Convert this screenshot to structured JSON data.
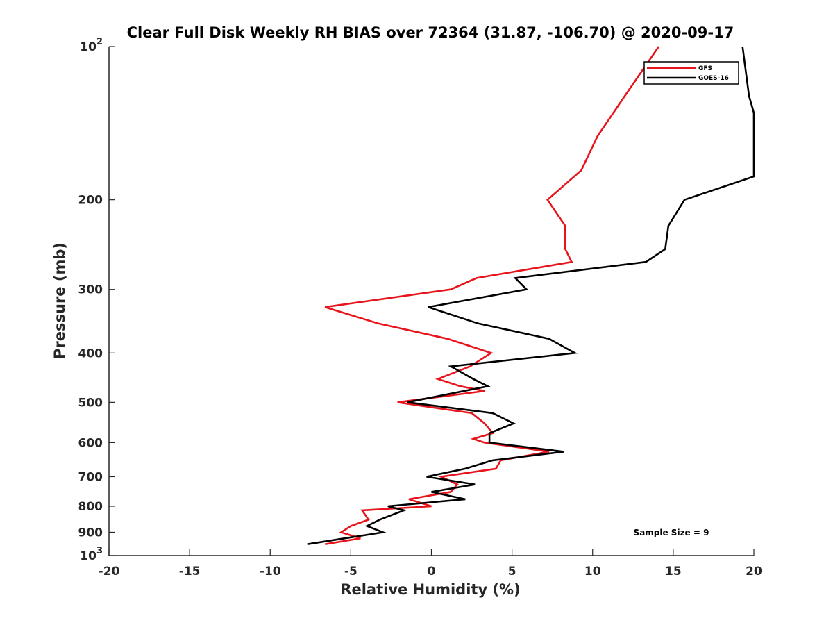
{
  "chart_data": {
    "type": "line",
    "title": "Clear Full Disk Weekly RH BIAS over 72364 (31.87, -106.70) @ 2020-09-17",
    "xlabel": "Relative Humidity (%)",
    "ylabel": "Pressure (mb)",
    "xlim": [
      -20,
      20
    ],
    "ylim": [
      1000,
      100
    ],
    "y_scale": "log",
    "y_reversed": true,
    "grid": false,
    "legend_placement": "top-right",
    "x_ticks": [
      {
        "value": -20,
        "label": "-20"
      },
      {
        "value": -15,
        "label": "-15"
      },
      {
        "value": -10,
        "label": "-10"
      },
      {
        "value": -5,
        "label": "-5"
      },
      {
        "value": 0,
        "label": "0"
      },
      {
        "value": 5,
        "label": "5"
      },
      {
        "value": 10,
        "label": "10"
      },
      {
        "value": 15,
        "label": "15"
      },
      {
        "value": 20,
        "label": "20"
      }
    ],
    "y_ticks": [
      {
        "value": 100,
        "base": "10",
        "exp": "2"
      },
      {
        "value": 200,
        "base": "200",
        "exp": ""
      },
      {
        "value": 300,
        "base": "300",
        "exp": ""
      },
      {
        "value": 400,
        "base": "400",
        "exp": ""
      },
      {
        "value": 500,
        "base": "500",
        "exp": ""
      },
      {
        "value": 600,
        "base": "600",
        "exp": ""
      },
      {
        "value": 700,
        "base": "700",
        "exp": ""
      },
      {
        "value": 800,
        "base": "800",
        "exp": ""
      },
      {
        "value": 900,
        "base": "900",
        "exp": ""
      },
      {
        "value": 1000,
        "base": "10",
        "exp": "3"
      }
    ],
    "series": [
      {
        "name": "GFS",
        "color": "#e8141c",
        "points": [
          {
            "x": 14.1,
            "p": 100
          },
          {
            "x": 12.0,
            "p": 125
          },
          {
            "x": 10.3,
            "p": 150
          },
          {
            "x": 9.3,
            "p": 175
          },
          {
            "x": 7.2,
            "p": 200
          },
          {
            "x": 8.3,
            "p": 225
          },
          {
            "x": 8.3,
            "p": 250
          },
          {
            "x": 8.7,
            "p": 265
          },
          {
            "x": 2.8,
            "p": 285
          },
          {
            "x": 1.2,
            "p": 300
          },
          {
            "x": -6.6,
            "p": 325
          },
          {
            "x": -3.3,
            "p": 350
          },
          {
            "x": 1.0,
            "p": 375
          },
          {
            "x": 3.7,
            "p": 400
          },
          {
            "x": 2.4,
            "p": 425
          },
          {
            "x": 0.4,
            "p": 450
          },
          {
            "x": 1.8,
            "p": 465
          },
          {
            "x": 3.3,
            "p": 475
          },
          {
            "x": -2.1,
            "p": 500
          },
          {
            "x": 2.5,
            "p": 525
          },
          {
            "x": 3.3,
            "p": 550
          },
          {
            "x": 3.8,
            "p": 575
          },
          {
            "x": 2.6,
            "p": 590
          },
          {
            "x": 3.3,
            "p": 600
          },
          {
            "x": 7.3,
            "p": 625
          },
          {
            "x": 4.3,
            "p": 650
          },
          {
            "x": 4.0,
            "p": 675
          },
          {
            "x": 0.6,
            "p": 700
          },
          {
            "x": 1.6,
            "p": 725
          },
          {
            "x": 1.2,
            "p": 750
          },
          {
            "x": -1.4,
            "p": 775
          },
          {
            "x": 0.0,
            "p": 800
          },
          {
            "x": -4.3,
            "p": 815
          },
          {
            "x": -3.9,
            "p": 850
          },
          {
            "x": -5.0,
            "p": 875
          },
          {
            "x": -5.6,
            "p": 900
          },
          {
            "x": -4.4,
            "p": 925
          },
          {
            "x": -6.6,
            "p": 950
          }
        ]
      },
      {
        "name": "GOES-16",
        "color": "#000000",
        "points": [
          {
            "x": 19.3,
            "p": 100
          },
          {
            "x": 19.7,
            "p": 125
          },
          {
            "x": 20.0,
            "p": 135
          },
          {
            "x": 20.0,
            "p": 180
          },
          {
            "x": 15.7,
            "p": 200
          },
          {
            "x": 14.7,
            "p": 225
          },
          {
            "x": 14.5,
            "p": 250
          },
          {
            "x": 13.3,
            "p": 265
          },
          {
            "x": 5.2,
            "p": 285
          },
          {
            "x": 5.9,
            "p": 300
          },
          {
            "x": -0.2,
            "p": 325
          },
          {
            "x": 2.9,
            "p": 350
          },
          {
            "x": 7.3,
            "p": 375
          },
          {
            "x": 8.9,
            "p": 400
          },
          {
            "x": 1.2,
            "p": 425
          },
          {
            "x": 2.6,
            "p": 450
          },
          {
            "x": 3.5,
            "p": 465
          },
          {
            "x": -1.5,
            "p": 500
          },
          {
            "x": 3.8,
            "p": 525
          },
          {
            "x": 5.1,
            "p": 550
          },
          {
            "x": 3.6,
            "p": 575
          },
          {
            "x": 3.6,
            "p": 600
          },
          {
            "x": 8.2,
            "p": 625
          },
          {
            "x": 3.8,
            "p": 650
          },
          {
            "x": 2.1,
            "p": 675
          },
          {
            "x": -0.3,
            "p": 700
          },
          {
            "x": 2.7,
            "p": 725
          },
          {
            "x": 0.0,
            "p": 750
          },
          {
            "x": 2.1,
            "p": 775
          },
          {
            "x": -2.7,
            "p": 800
          },
          {
            "x": -1.7,
            "p": 815
          },
          {
            "x": -3.2,
            "p": 850
          },
          {
            "x": -4.0,
            "p": 875
          },
          {
            "x": -3.0,
            "p": 900
          },
          {
            "x": -7.7,
            "p": 950
          }
        ]
      }
    ],
    "annotation": "Sample Size = 9"
  }
}
